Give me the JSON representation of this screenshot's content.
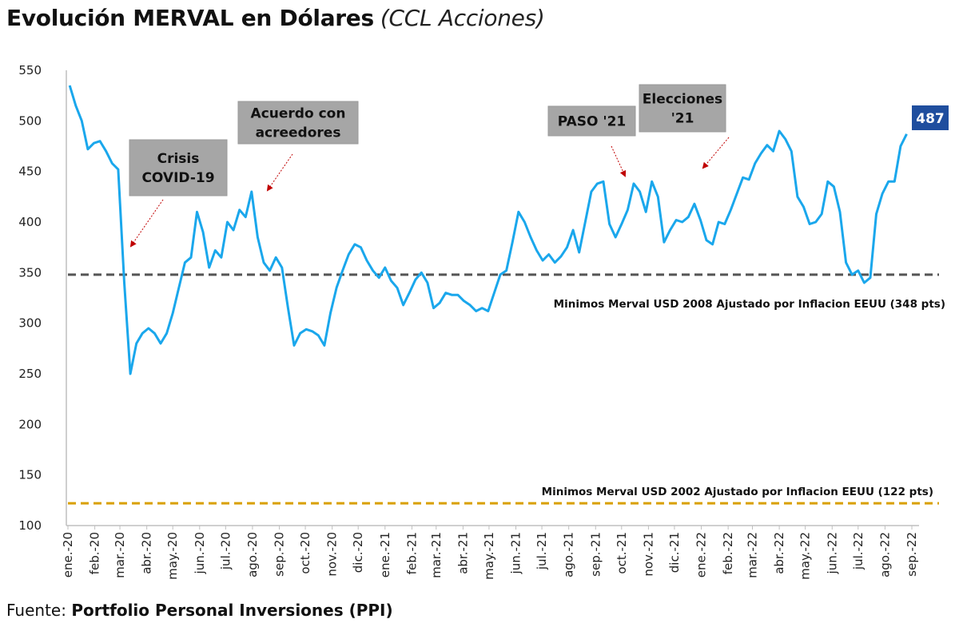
{
  "title": "Evolución MERVAL en Dólares",
  "subtitle": "(CCL Acciones)",
  "source_label": "Fuente:",
  "source_value": "Portfolio Personal Inversiones (PPI)",
  "chart_data": {
    "type": "line",
    "title": "Evolución MERVAL en Dólares (CCL Acciones)",
    "xlabel": "",
    "ylabel": "",
    "ylim": [
      100,
      550
    ],
    "xlim": [
      "2020-01-01",
      "2022-09-01"
    ],
    "yticks": [
      "100",
      "150",
      "200",
      "250",
      "300",
      "350",
      "400",
      "450",
      "500",
      "550"
    ],
    "xticks": [
      {
        "date": "2020-01-01",
        "label": "ene.-20"
      },
      {
        "date": "2020-02-01",
        "label": "feb.-20"
      },
      {
        "date": "2020-03-01",
        "label": "mar.-20"
      },
      {
        "date": "2020-04-01",
        "label": "abr.-20"
      },
      {
        "date": "2020-05-01",
        "label": "may.-20"
      },
      {
        "date": "2020-06-01",
        "label": "jun.-20"
      },
      {
        "date": "2020-07-01",
        "label": "jul.-20"
      },
      {
        "date": "2020-08-01",
        "label": "ago.-20"
      },
      {
        "date": "2020-09-01",
        "label": "sep.-20"
      },
      {
        "date": "2020-10-01",
        "label": "oct.-20"
      },
      {
        "date": "2020-11-01",
        "label": "nov.-20"
      },
      {
        "date": "2020-12-01",
        "label": "dic.-20"
      },
      {
        "date": "2021-01-01",
        "label": "ene.-21"
      },
      {
        "date": "2021-02-01",
        "label": "feb.-21"
      },
      {
        "date": "2021-03-01",
        "label": "mar.-21"
      },
      {
        "date": "2021-04-01",
        "label": "abr.-21"
      },
      {
        "date": "2021-05-01",
        "label": "may.-21"
      },
      {
        "date": "2021-06-01",
        "label": "jun.-21"
      },
      {
        "date": "2021-07-01",
        "label": "jul.-21"
      },
      {
        "date": "2021-08-01",
        "label": "ago.-21"
      },
      {
        "date": "2021-09-01",
        "label": "sep.-21"
      },
      {
        "date": "2021-10-01",
        "label": "oct.-21"
      },
      {
        "date": "2021-11-01",
        "label": "nov.-21"
      },
      {
        "date": "2021-12-01",
        "label": "dic.-21"
      },
      {
        "date": "2022-01-01",
        "label": "ene.-22"
      },
      {
        "date": "2022-02-01",
        "label": "feb.-22"
      },
      {
        "date": "2022-03-01",
        "label": "mar.-22"
      },
      {
        "date": "2022-04-01",
        "label": "abr.-22"
      },
      {
        "date": "2022-05-01",
        "label": "may.-22"
      },
      {
        "date": "2022-06-01",
        "label": "jun.-22"
      },
      {
        "date": "2022-07-01",
        "label": "jul.-22"
      },
      {
        "date": "2022-08-01",
        "label": "ago.-22"
      },
      {
        "date": "2022-09-01",
        "label": "sep.-22"
      }
    ],
    "grid": false,
    "series_color": "#1aa7ec",
    "series": [
      {
        "points": [
          [
            "2020-01-03",
            535
          ],
          [
            "2020-01-10",
            515
          ],
          [
            "2020-01-17",
            500
          ],
          [
            "2020-01-24",
            472
          ],
          [
            "2020-01-31",
            478
          ],
          [
            "2020-02-07",
            480
          ],
          [
            "2020-02-14",
            470
          ],
          [
            "2020-02-21",
            458
          ],
          [
            "2020-02-28",
            452
          ],
          [
            "2020-03-06",
            340
          ],
          [
            "2020-03-13",
            250
          ],
          [
            "2020-03-20",
            280
          ],
          [
            "2020-03-27",
            290
          ],
          [
            "2020-04-03",
            295
          ],
          [
            "2020-04-10",
            290
          ],
          [
            "2020-04-17",
            280
          ],
          [
            "2020-04-24",
            290
          ],
          [
            "2020-05-01",
            310
          ],
          [
            "2020-05-08",
            335
          ],
          [
            "2020-05-15",
            360
          ],
          [
            "2020-05-22",
            365
          ],
          [
            "2020-05-29",
            410
          ],
          [
            "2020-06-05",
            390
          ],
          [
            "2020-06-12",
            355
          ],
          [
            "2020-06-19",
            372
          ],
          [
            "2020-06-26",
            365
          ],
          [
            "2020-07-03",
            400
          ],
          [
            "2020-07-10",
            392
          ],
          [
            "2020-07-17",
            412
          ],
          [
            "2020-07-24",
            405
          ],
          [
            "2020-07-31",
            430
          ],
          [
            "2020-08-07",
            385
          ],
          [
            "2020-08-14",
            360
          ],
          [
            "2020-08-21",
            352
          ],
          [
            "2020-08-28",
            365
          ],
          [
            "2020-09-04",
            355
          ],
          [
            "2020-09-11",
            315
          ],
          [
            "2020-09-18",
            278
          ],
          [
            "2020-09-25",
            290
          ],
          [
            "2020-10-02",
            294
          ],
          [
            "2020-10-09",
            292
          ],
          [
            "2020-10-16",
            288
          ],
          [
            "2020-10-23",
            278
          ],
          [
            "2020-10-30",
            310
          ],
          [
            "2020-11-06",
            335
          ],
          [
            "2020-11-13",
            352
          ],
          [
            "2020-11-20",
            368
          ],
          [
            "2020-11-27",
            378
          ],
          [
            "2020-12-04",
            375
          ],
          [
            "2020-12-11",
            362
          ],
          [
            "2020-12-18",
            352
          ],
          [
            "2020-12-25",
            345
          ],
          [
            "2021-01-01",
            355
          ],
          [
            "2021-01-08",
            342
          ],
          [
            "2021-01-15",
            335
          ],
          [
            "2021-01-22",
            318
          ],
          [
            "2021-01-29",
            330
          ],
          [
            "2021-02-05",
            343
          ],
          [
            "2021-02-12",
            350
          ],
          [
            "2021-02-19",
            340
          ],
          [
            "2021-02-26",
            315
          ],
          [
            "2021-03-05",
            320
          ],
          [
            "2021-03-12",
            330
          ],
          [
            "2021-03-19",
            328
          ],
          [
            "2021-03-26",
            328
          ],
          [
            "2021-04-02",
            322
          ],
          [
            "2021-04-09",
            318
          ],
          [
            "2021-04-16",
            312
          ],
          [
            "2021-04-23",
            315
          ],
          [
            "2021-04-30",
            312
          ],
          [
            "2021-05-07",
            330
          ],
          [
            "2021-05-14",
            348
          ],
          [
            "2021-05-21",
            352
          ],
          [
            "2021-05-28",
            380
          ],
          [
            "2021-06-04",
            410
          ],
          [
            "2021-06-11",
            400
          ],
          [
            "2021-06-18",
            385
          ],
          [
            "2021-06-25",
            372
          ],
          [
            "2021-07-02",
            362
          ],
          [
            "2021-07-09",
            368
          ],
          [
            "2021-07-16",
            360
          ],
          [
            "2021-07-23",
            366
          ],
          [
            "2021-07-30",
            375
          ],
          [
            "2021-08-06",
            392
          ],
          [
            "2021-08-13",
            370
          ],
          [
            "2021-08-20",
            400
          ],
          [
            "2021-08-27",
            430
          ],
          [
            "2021-09-03",
            438
          ],
          [
            "2021-09-10",
            440
          ],
          [
            "2021-09-17",
            398
          ],
          [
            "2021-09-24",
            385
          ],
          [
            "2021-10-01",
            398
          ],
          [
            "2021-10-08",
            412
          ],
          [
            "2021-10-15",
            438
          ],
          [
            "2021-10-22",
            430
          ],
          [
            "2021-10-29",
            410
          ],
          [
            "2021-11-05",
            440
          ],
          [
            "2021-11-12",
            425
          ],
          [
            "2021-11-19",
            380
          ],
          [
            "2021-11-26",
            392
          ],
          [
            "2021-12-03",
            402
          ],
          [
            "2021-12-10",
            400
          ],
          [
            "2021-12-17",
            405
          ],
          [
            "2021-12-24",
            418
          ],
          [
            "2021-12-31",
            402
          ],
          [
            "2022-01-07",
            382
          ],
          [
            "2022-01-14",
            378
          ],
          [
            "2022-01-21",
            400
          ],
          [
            "2022-01-28",
            398
          ],
          [
            "2022-02-04",
            412
          ],
          [
            "2022-02-11",
            428
          ],
          [
            "2022-02-18",
            444
          ],
          [
            "2022-02-25",
            442
          ],
          [
            "2022-03-04",
            458
          ],
          [
            "2022-03-11",
            468
          ],
          [
            "2022-03-18",
            476
          ],
          [
            "2022-03-25",
            470
          ],
          [
            "2022-04-01",
            490
          ],
          [
            "2022-04-08",
            482
          ],
          [
            "2022-04-15",
            470
          ],
          [
            "2022-04-22",
            425
          ],
          [
            "2022-04-29",
            415
          ],
          [
            "2022-05-06",
            398
          ],
          [
            "2022-05-13",
            400
          ],
          [
            "2022-05-20",
            408
          ],
          [
            "2022-05-27",
            440
          ],
          [
            "2022-06-03",
            435
          ],
          [
            "2022-06-10",
            410
          ],
          [
            "2022-06-17",
            360
          ],
          [
            "2022-06-24",
            348
          ],
          [
            "2022-07-01",
            352
          ],
          [
            "2022-07-08",
            340
          ],
          [
            "2022-07-15",
            345
          ],
          [
            "2022-07-22",
            408
          ],
          [
            "2022-07-29",
            428
          ],
          [
            "2022-08-05",
            440
          ],
          [
            "2022-08-12",
            440
          ],
          [
            "2022-08-19",
            475
          ],
          [
            "2022-08-26",
            487
          ]
        ]
      }
    ],
    "last_value_label": "487",
    "last_value_color": "#1f4e9e",
    "reference_lines": [
      {
        "value": 348,
        "label": "Minimos Merval USD 2008 Ajustado por Inflacion EEUU (348 pts)",
        "color": "#555555"
      },
      {
        "value": 122,
        "label": "Minimos Merval USD 2002 Ajustado por Inflacion EEUU (122 pts)",
        "color": "#d9a000"
      }
    ],
    "annotations": [
      {
        "lines": [
          "Crisis",
          "COVID-19"
        ],
        "date": "2020-03-14",
        "value": 368
      },
      {
        "lines": [
          "Acuerdo con",
          "acreedores"
        ],
        "date": "2020-08-09",
        "value": 432
      },
      {
        "lines": [
          "PASO '21"
        ],
        "date": "2021-09-12",
        "value": 442
      },
      {
        "lines": [
          "Elecciones",
          "'21"
        ],
        "date": "2021-11-25",
        "value": 448
      }
    ],
    "annotation_box_color": "#a6a6a6",
    "arrow_color": "#c00000"
  }
}
